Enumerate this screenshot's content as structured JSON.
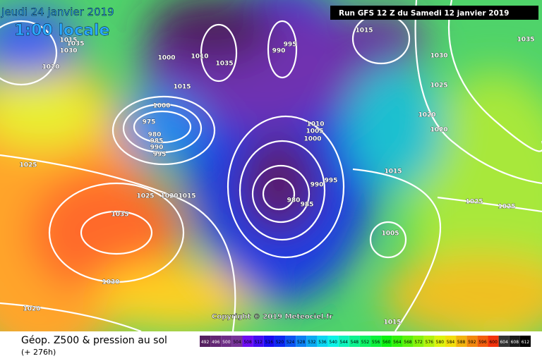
{
  "header": {
    "date": "Jeudi 24 janvier 2019",
    "time": "1:00 locale",
    "run": "Run GFS 12 Z du Samedi 12 janvier 2019"
  },
  "footer": {
    "copyright": "Copyright © 2019 Meteociel.fr"
  },
  "legend": {
    "title": "Géop. Z500 & pression au sol",
    "lead": "(+ 276h)",
    "scale": [
      492,
      496,
      500,
      504,
      508,
      512,
      516,
      520,
      524,
      528,
      532,
      536,
      540,
      544,
      548,
      552,
      556,
      560,
      564,
      568,
      572,
      576,
      580,
      584,
      588,
      592,
      596,
      600,
      604,
      608,
      612
    ]
  },
  "map": {
    "pressure_labels": [
      1015,
      1030,
      1035,
      1020,
      1000,
      1010,
      1035,
      990,
      995,
      1015,
      1030,
      1035,
      1025,
      1020,
      1020,
      1000,
      975,
      980,
      985,
      990,
      995,
      1025,
      1025,
      1020,
      1015,
      1010,
      1005,
      1000,
      990,
      995,
      980,
      985,
      1015,
      1025,
      1025,
      1005,
      1035,
      1030,
      1020,
      1015,
      1015
    ]
  }
}
